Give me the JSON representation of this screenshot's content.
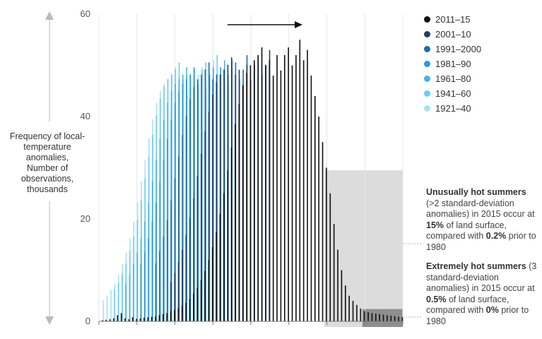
{
  "chart_data": {
    "type": "bar",
    "ylabel_bold": "Frequency of local-temperature anomalies,",
    "ylabel_sub": "Number of observations, thousands",
    "ylim": [
      0,
      60
    ],
    "yticks": [
      "0",
      "20",
      "40",
      "60"
    ],
    "series": [
      {
        "name": "2011–15",
        "color": "#111111",
        "start": 22,
        "peak": 55,
        "peak_index": 52
      },
      {
        "name": "2001–10",
        "color": "#1f3f66",
        "start": 18,
        "peak": 53,
        "peak_index": 44
      },
      {
        "name": "1991–2000",
        "color": "#1f6ea8",
        "start": 14,
        "peak": 52,
        "peak_index": 38
      },
      {
        "name": "1981–90",
        "color": "#2b9bd8",
        "start": 10,
        "peak": 51,
        "peak_index": 34
      },
      {
        "name": "1961–80",
        "color": "#45b4e6",
        "start": 6,
        "peak": 51,
        "peak_index": 32
      },
      {
        "name": "1941–60",
        "color": "#6fcbee",
        "start": 3,
        "peak": 52,
        "peak_index": 30
      },
      {
        "name": "1921–40",
        "color": "#a6e2f6",
        "start": 0,
        "peak": 51,
        "peak_index": 29
      }
    ],
    "bars_2011_15": [
      0.2,
      0.3,
      0.4,
      0.6,
      1.2,
      1.6,
      0.6,
      0.4,
      0.8,
      0.5,
      0.6,
      0.7,
      0.8,
      0.9,
      1.0,
      1.2,
      1.4,
      1.6,
      1.9,
      2.2,
      2.6,
      3.0,
      3.6,
      4.4,
      5.4,
      6.6,
      8.0,
      9.8,
      12,
      14.5,
      17.5,
      21,
      25,
      29.5,
      34,
      38.5,
      42.5,
      46,
      48.5,
      50,
      51,
      52,
      53.5,
      50,
      51,
      48,
      52,
      49,
      52,
      53.5,
      50,
      52,
      55,
      51,
      53,
      48,
      44,
      40,
      35,
      30,
      25,
      19,
      14,
      10,
      7,
      5,
      4,
      3.2,
      2.5,
      2.0,
      1.8,
      1.6,
      1.5,
      1.4,
      1.3,
      1.2,
      1.1,
      1.0,
      0.9,
      0.8
    ],
    "hot_summer_region": {
      "from_index": 59,
      "height": 29.5
    },
    "extreme_region": {
      "from_index": 69,
      "height": 2.4
    },
    "legend_position": "top-right",
    "arrow_direction": "right"
  },
  "annotations": {
    "hot": {
      "bold1": "Unusually hot summers",
      "t1": " (>2 standard-deviation anomalies) in 2015 occur at ",
      "bold2": "15%",
      "t2": " of land surface, compared with ",
      "bold3": "0.2%",
      "t3": " prior to 1980"
    },
    "extreme": {
      "bold1": "Extremely hot summers",
      "t1": " (3 standard-deviation anomalies) in 2015 occur at ",
      "bold2": "0.5%",
      "t2": " of land surface, compared with ",
      "bold3": "0%",
      "t3": " prior to 1980"
    }
  }
}
